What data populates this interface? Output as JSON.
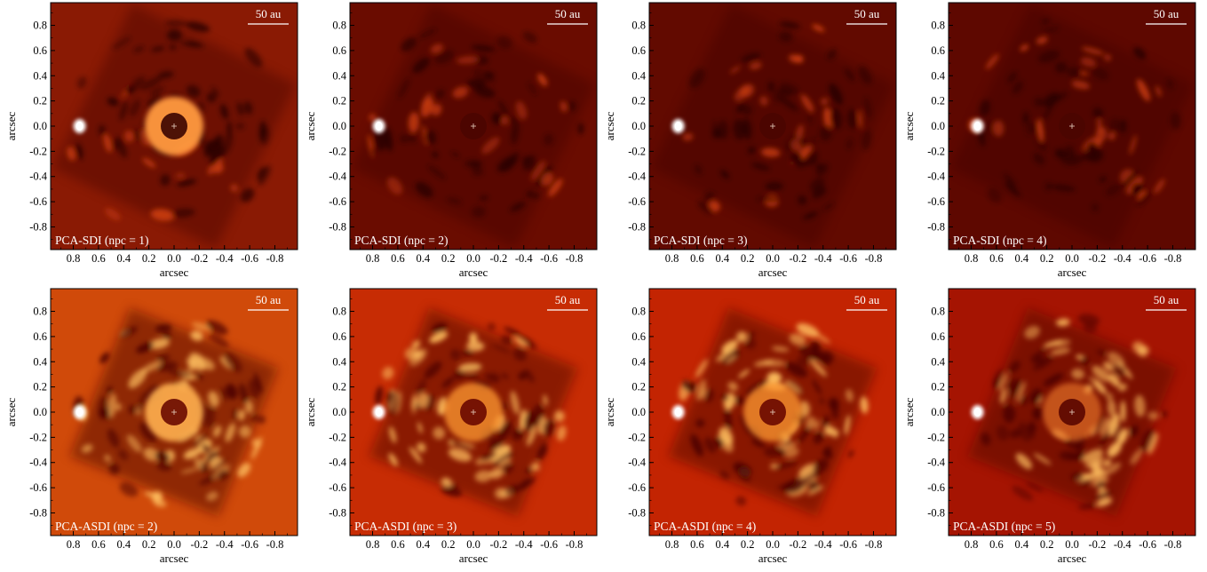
{
  "figure": {
    "axis_label": "arcsec",
    "scalebar_label": "50 au",
    "colormap": [
      "#1a0000",
      "#5a0000",
      "#a01000",
      "#d04000",
      "#f08020",
      "#ffc060",
      "#ffffff"
    ],
    "x_ticks": [
      "0.8",
      "0.6",
      "0.4",
      "0.2",
      "0.0",
      "-0.2",
      "-0.4",
      "-0.6",
      "-0.8"
    ],
    "y_ticks": [
      "0.8",
      "0.6",
      "0.4",
      "0.2",
      "0.0",
      "-0.2",
      "-0.4",
      "-0.6",
      "-0.8"
    ],
    "axis_range": [
      -0.98,
      0.98
    ],
    "panels": [
      {
        "label": "PCA-SDI (npc = 1)",
        "background": "#8a1a04",
        "method": "sdi",
        "rim": "strong"
      },
      {
        "label": "PCA-SDI (npc = 2)",
        "background": "#6a0c00",
        "method": "sdi",
        "rim": "none"
      },
      {
        "label": "PCA-SDI (npc = 3)",
        "background": "#620a00",
        "method": "sdi",
        "rim": "none"
      },
      {
        "label": "PCA-SDI (npc = 4)",
        "background": "#5e0800",
        "method": "sdi",
        "rim": "none"
      },
      {
        "label": "PCA-ASDI (npc = 2)",
        "background": "#d04a0a",
        "method": "asdi",
        "rim": "bright"
      },
      {
        "label": "PCA-ASDI (npc = 3)",
        "background": "#c72c04",
        "method": "asdi",
        "rim": "medium"
      },
      {
        "label": "PCA-ASDI (npc = 4)",
        "background": "#c32402",
        "method": "asdi",
        "rim": "medium"
      },
      {
        "label": "PCA-ASDI (npc = 5)",
        "background": "#a51402",
        "method": "asdi",
        "rim": "faint"
      }
    ]
  }
}
